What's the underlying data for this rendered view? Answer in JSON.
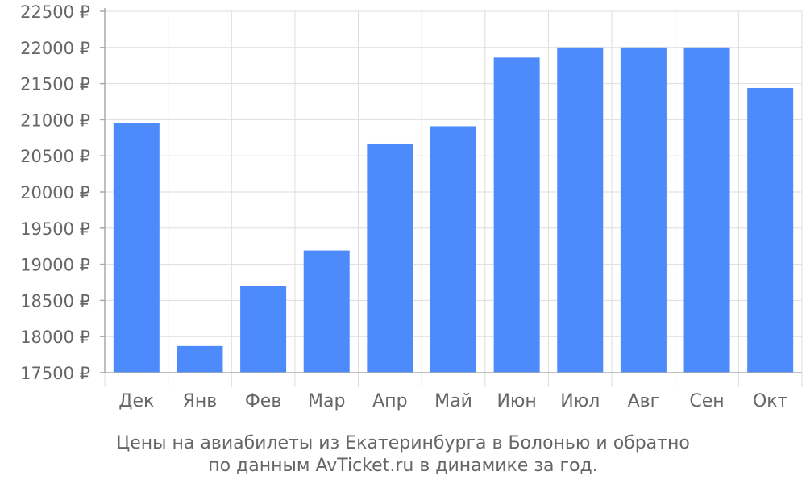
{
  "chart_data": {
    "type": "bar",
    "categories": [
      "Дек",
      "Янв",
      "Фев",
      "Мар",
      "Апр",
      "Май",
      "Июн",
      "Июл",
      "Авг",
      "Сен",
      "Окт"
    ],
    "values": [
      20950,
      17870,
      18700,
      19190,
      20670,
      20910,
      21860,
      22000,
      22000,
      22000,
      21440
    ],
    "y_tick_labels": [
      "22500 ₽",
      "22000 ₽",
      "21500 ₽",
      "21000 ₽",
      "20500 ₽",
      "20000 ₽",
      "19500 ₽",
      "19000 ₽",
      "18500 ₽",
      "18000 ₽",
      "17500 ₽"
    ],
    "y_ticks": [
      22500,
      22000,
      21500,
      21000,
      20500,
      20000,
      19500,
      19000,
      18500,
      18000,
      17500
    ],
    "ylim": [
      17500,
      22500
    ],
    "caption": [
      "Цены на авиабилеты из Екатеринбурга в Болонью и обратно",
      "по данным AvTicket.ru в динамике за год."
    ],
    "grid": true,
    "colors": {
      "bar": "#4d8afc",
      "grid": "#dddddd",
      "axis": "#aaaaaa",
      "text": "#666666"
    }
  }
}
